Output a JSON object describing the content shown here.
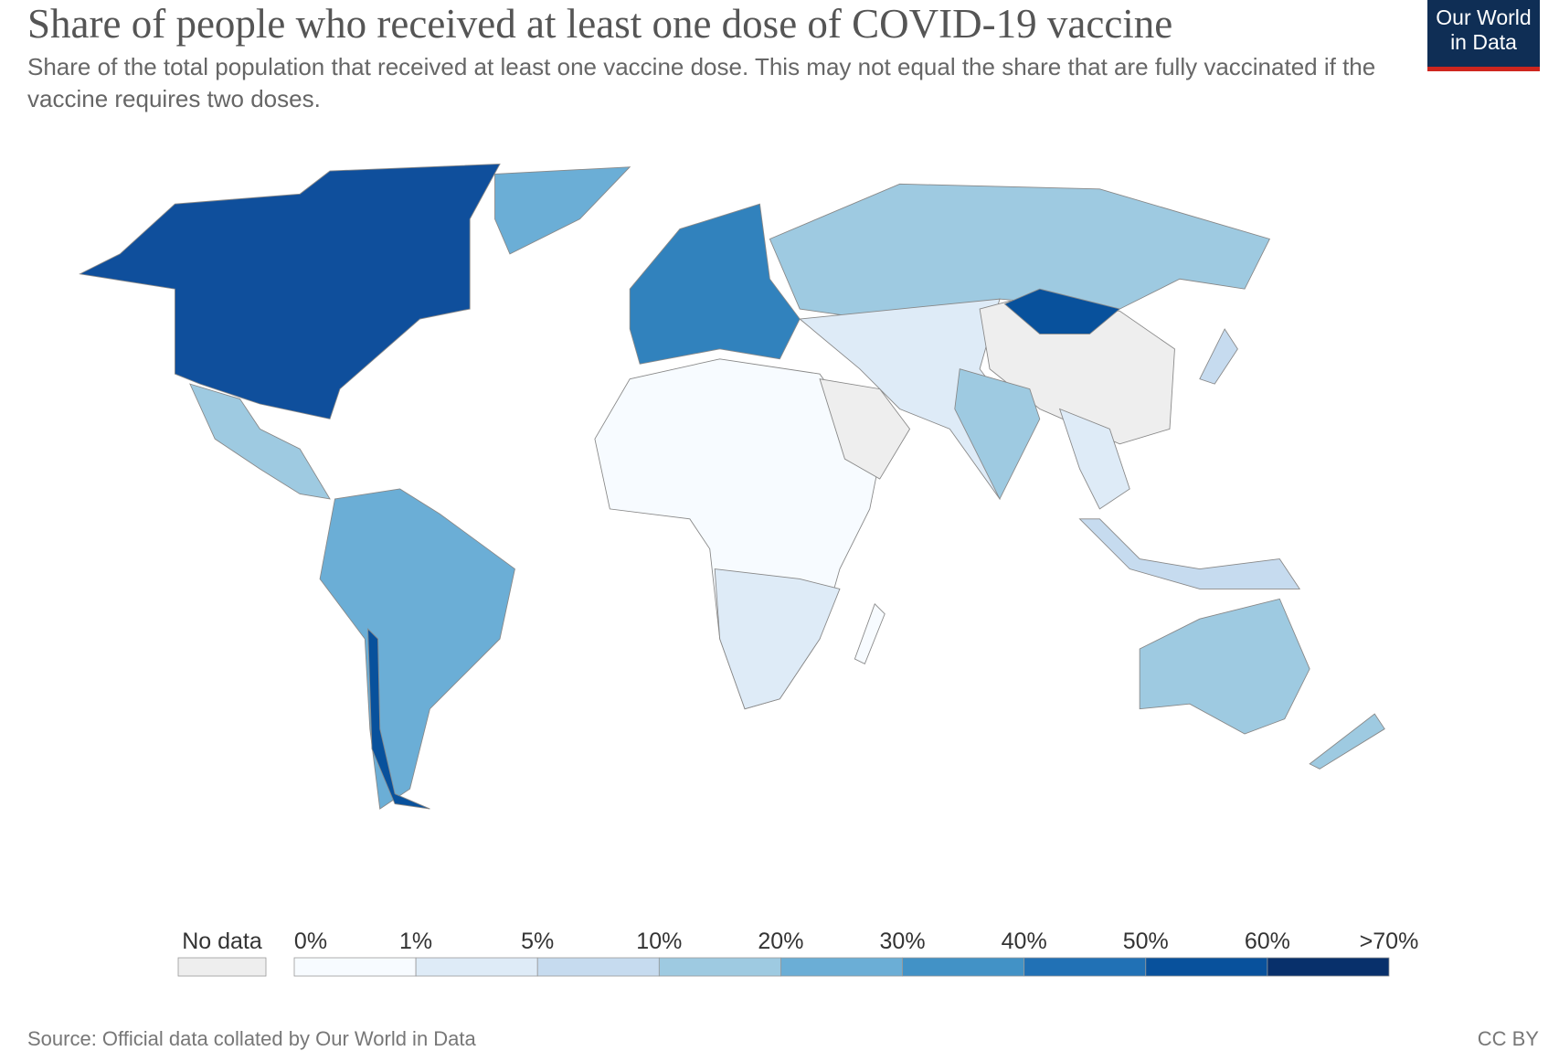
{
  "header": {
    "title": "Share of people who received at least one dose of COVID-19 vaccine",
    "subtitle": "Share of the total population that received at least one vaccine dose. This may not equal the share that are fully vaccinated if the vaccine requires two doses.",
    "logo": [
      "Our World",
      "in Data"
    ]
  },
  "legend": {
    "no_data": {
      "label": "No data",
      "color": "#eeeeee"
    },
    "ticks": [
      "0%",
      "1%",
      "5%",
      "10%",
      "20%",
      "30%",
      "40%",
      "50%",
      "60%",
      ">70%"
    ],
    "colors": [
      "#f7fbff",
      "#deebf7",
      "#c6dbef",
      "#9ecae1",
      "#6baed6",
      "#4292c6",
      "#2171b5",
      "#08519c",
      "#08306b"
    ]
  },
  "footer": {
    "source": "Source: Official data collated by Our World in Data",
    "license": "CC BY"
  }
}
